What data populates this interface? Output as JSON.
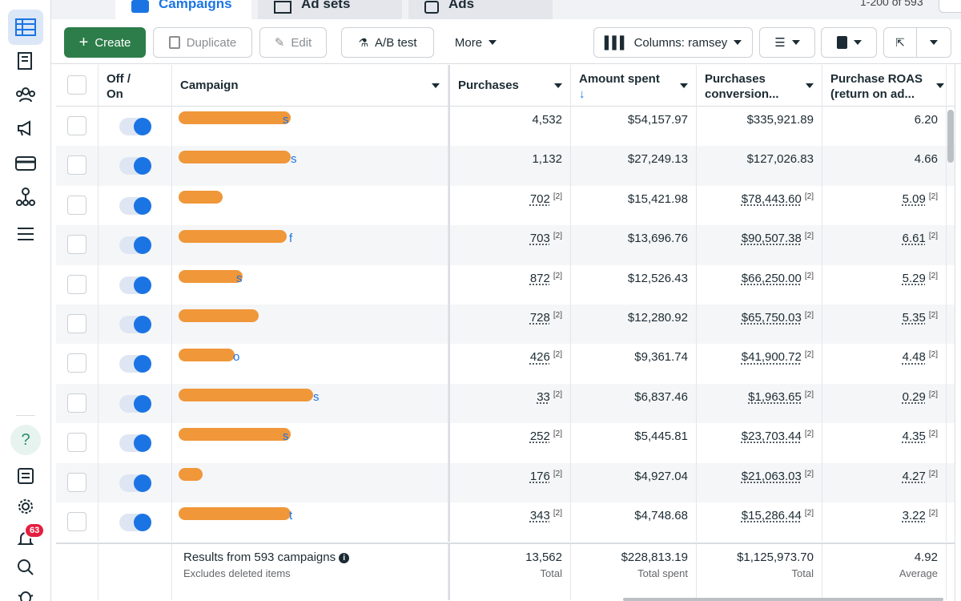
{
  "tabs": [
    {
      "label": "Campaigns",
      "active": true
    },
    {
      "label": "Ad sets",
      "active": false
    },
    {
      "label": "Ads",
      "active": false
    }
  ],
  "pager": {
    "range": "1-200 of 593"
  },
  "toolbar": {
    "create": "Create",
    "duplicate": "Duplicate",
    "edit": "Edit",
    "ab_test": "A/B test",
    "more": "More",
    "columns": "Columns: ramsey"
  },
  "columns": {
    "off_on": "Off /\nOn",
    "campaign": "Campaign",
    "purchases": "Purchases",
    "amount_spent": "Amount spent",
    "conversion": "Purchases conversion...",
    "roas": "Purchase ROAS (return on ad..."
  },
  "rows": [
    {
      "name_tail": "s",
      "purchases": "4,532",
      "spent": "$54,157.97",
      "conversion": "$335,921.89",
      "roas": "6.20",
      "note": false
    },
    {
      "name_tail": "s",
      "purchases": "1,132",
      "spent": "$27,249.13",
      "conversion": "$127,026.83",
      "roas": "4.66",
      "note": false
    },
    {
      "name_tail": "",
      "purchases": "702",
      "spent": "$15,421.98",
      "conversion": "$78,443.60",
      "roas": "5.09",
      "note": true
    },
    {
      "name_tail": "f",
      "purchases": "703",
      "spent": "$13,696.76",
      "conversion": "$90,507.38",
      "roas": "6.61",
      "note": true
    },
    {
      "name_tail": "s",
      "purchases": "872",
      "spent": "$12,526.43",
      "conversion": "$66,250.00",
      "roas": "5.29",
      "note": true
    },
    {
      "name_tail": "",
      "purchases": "728",
      "spent": "$12,280.92",
      "conversion": "$65,750.03",
      "roas": "5.35",
      "note": true
    },
    {
      "name_tail": "o",
      "purchases": "426",
      "spent": "$9,361.74",
      "conversion": "$41,900.72",
      "roas": "4.48",
      "note": true
    },
    {
      "name_tail": "s",
      "purchases": "33",
      "spent": "$6,837.46",
      "conversion": "$1,963.65",
      "roas": "0.29",
      "note": true
    },
    {
      "name_tail": "s",
      "purchases": "252",
      "spent": "$5,445.81",
      "conversion": "$23,703.44",
      "roas": "4.35",
      "note": true
    },
    {
      "name_tail": "",
      "purchases": "176",
      "spent": "$4,927.04",
      "conversion": "$21,063.03",
      "roas": "4.27",
      "note": true
    },
    {
      "name_tail": "t",
      "purchases": "343",
      "spent": "$4,748.68",
      "conversion": "$15,286.44",
      "roas": "3.22",
      "note": true
    }
  ],
  "note_marker": "[2]",
  "footer": {
    "results": "Results from 593 campaigns",
    "excludes": "Excludes deleted items",
    "purchases": "13,562",
    "purchases_sub": "Total",
    "spent": "$228,813.19",
    "spent_sub": "Total spent",
    "conversion": "$1,125,973.70",
    "conversion_sub": "Total",
    "roas": "4.92",
    "roas_sub": "Average"
  },
  "notifications": {
    "count": "63"
  },
  "help": {
    "glyph": "?"
  },
  "colors": {
    "accent": "#1b74e4",
    "create": "#2d7d4a",
    "redaction": "#f0973a",
    "badge": "#e41e3f"
  }
}
